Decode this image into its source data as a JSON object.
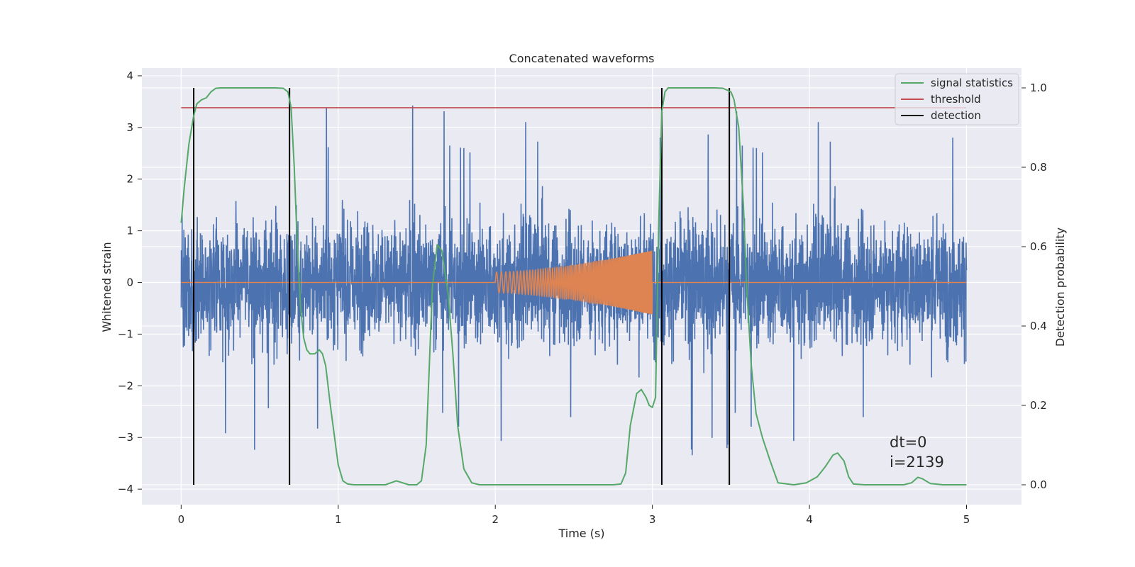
{
  "chart_data": {
    "type": "line",
    "title": "Concatenated waveforms",
    "xlabel": "Time (s)",
    "ylabel": "Whitened strain",
    "y2label": "Detection probability",
    "xlim": [
      -0.25,
      5.35
    ],
    "ylim": [
      -4.3,
      4.15
    ],
    "y2lim": [
      -0.05,
      1.05
    ],
    "xticks": [
      0,
      1,
      2,
      3,
      4,
      5
    ],
    "yticks": [
      -4,
      -3,
      -2,
      -1,
      0,
      1,
      2,
      3,
      4
    ],
    "y2ticks": [
      0.0,
      0.2,
      0.4,
      0.6,
      0.8,
      1.0
    ],
    "grid": true,
    "legend_position": "top-right",
    "colors": {
      "noise": "#4c72b0",
      "injected": "#dd8452",
      "signal_statistics": "#55a868",
      "threshold": "#c44e52",
      "detection": "#000000",
      "background": "#eaeaf2",
      "grid": "#ffffff"
    },
    "noise_series": {
      "x_range": [
        0,
        5
      ],
      "core_band": [
        -0.8,
        0.7
      ],
      "typical_peaks": [
        -2.2,
        2.2
      ],
      "extreme_peaks": [
        -3.9,
        3.75
      ]
    },
    "injected_waveform": {
      "x_range": [
        2.0,
        3.0
      ],
      "amplitude_start": 0.2,
      "amplitude_end": 0.62
    },
    "signal_statistics": {
      "name": "signal statistics",
      "x": [
        0.0,
        0.02,
        0.05,
        0.08,
        0.1,
        0.13,
        0.16,
        0.19,
        0.22,
        0.25,
        0.3,
        0.4,
        0.5,
        0.6,
        0.65,
        0.68,
        0.7,
        0.72,
        0.74,
        0.76,
        0.78,
        0.8,
        0.82,
        0.85,
        0.88,
        0.9,
        0.92,
        0.95,
        1.0,
        1.03,
        1.06,
        1.1,
        1.2,
        1.3,
        1.37,
        1.45,
        1.5,
        1.53,
        1.56,
        1.58,
        1.6,
        1.63,
        1.66,
        1.7,
        1.73,
        1.76,
        1.8,
        1.85,
        1.9,
        2.0,
        2.5,
        2.75,
        2.8,
        2.83,
        2.86,
        2.9,
        2.93,
        2.96,
        2.98,
        3.0,
        3.02,
        3.04,
        3.06,
        3.08,
        3.1,
        3.15,
        3.2,
        3.3,
        3.4,
        3.45,
        3.5,
        3.52,
        3.55,
        3.58,
        3.6,
        3.63,
        3.66,
        3.7,
        3.75,
        3.8,
        3.9,
        3.98,
        4.05,
        4.1,
        4.15,
        4.18,
        4.22,
        4.25,
        4.28,
        4.35,
        4.5,
        4.6,
        4.65,
        4.69,
        4.72,
        4.77,
        4.85,
        5.0
      ],
      "y": [
        0.66,
        0.75,
        0.86,
        0.93,
        0.96,
        0.97,
        0.975,
        0.99,
        0.999,
        1.0,
        1.0,
        1.0,
        1.0,
        1.0,
        0.999,
        0.99,
        0.95,
        0.8,
        0.6,
        0.45,
        0.37,
        0.34,
        0.33,
        0.33,
        0.34,
        0.33,
        0.3,
        0.2,
        0.05,
        0.01,
        0.002,
        0.0,
        0.0,
        0.0,
        0.01,
        0.0,
        0.0,
        0.01,
        0.1,
        0.3,
        0.5,
        0.605,
        0.59,
        0.48,
        0.33,
        0.15,
        0.04,
        0.005,
        0.0,
        0.0,
        0.0,
        0.0,
        0.002,
        0.03,
        0.15,
        0.23,
        0.24,
        0.22,
        0.2,
        0.195,
        0.22,
        0.65,
        0.94,
        0.99,
        1.0,
        1.0,
        1.0,
        1.0,
        1.0,
        0.999,
        0.99,
        0.97,
        0.9,
        0.7,
        0.5,
        0.3,
        0.18,
        0.12,
        0.06,
        0.005,
        0.0,
        0.005,
        0.02,
        0.045,
        0.075,
        0.08,
        0.06,
        0.02,
        0.002,
        0.0,
        0.0,
        0.0,
        0.005,
        0.019,
        0.015,
        0.003,
        0.0,
        0.0
      ]
    },
    "threshold": {
      "name": "threshold",
      "value": 0.95,
      "x_range": [
        0,
        5
      ]
    },
    "detection": {
      "name": "detection",
      "times": [
        0.08,
        0.69,
        3.06,
        3.49
      ],
      "y_range": [
        0.0,
        1.0
      ]
    },
    "annotations": [
      {
        "text": "dt=0",
        "x": 4.5,
        "y": -3.05
      },
      {
        "text": "i=2139",
        "x": 4.5,
        "y": -3.45
      }
    ],
    "legend": [
      "signal statistics",
      "threshold",
      "detection"
    ]
  }
}
